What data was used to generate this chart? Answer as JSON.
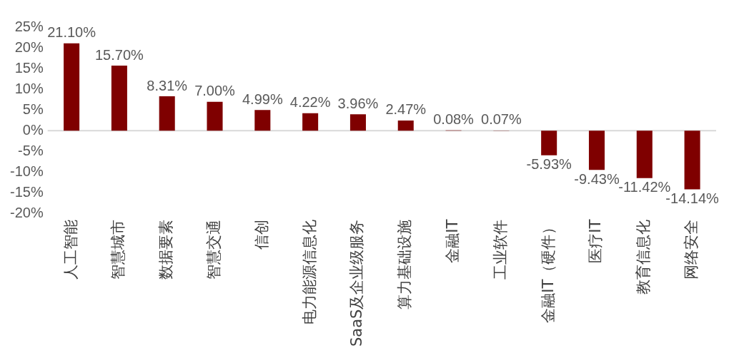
{
  "chart_data": {
    "type": "bar",
    "categories": [
      "人工智能",
      "智慧城市",
      "数据要素",
      "智慧交通",
      "信创",
      "电力能源信息化",
      "SaaS及企业级服务",
      "算力基础设施",
      "金融IT",
      "工业软件",
      "金融IT（硬件）",
      "医疗IT",
      "教育信息化",
      "网络安全"
    ],
    "values": [
      21.1,
      15.7,
      8.31,
      7.0,
      4.99,
      4.22,
      3.96,
      2.47,
      0.08,
      0.07,
      -5.93,
      -9.43,
      -11.42,
      -14.14
    ],
    "value_labels": [
      "21.10%",
      "15.70%",
      "8.31%",
      "7.00%",
      "4.99%",
      "4.22%",
      "3.96%",
      "2.47%",
      "0.08%",
      "0.07%",
      "-5.93%",
      "-9.43%",
      "-11.42%",
      "-14.14%"
    ],
    "color": "#7f0000",
    "ylim": [
      -20,
      25
    ],
    "yticks": [
      {
        "value": -20,
        "label": "-20%"
      },
      {
        "value": -15,
        "label": "-15%"
      },
      {
        "value": -10,
        "label": "-10%"
      },
      {
        "value": -5,
        "label": "-5%"
      },
      {
        "value": 0,
        "label": "0%"
      },
      {
        "value": 5,
        "label": "5%"
      },
      {
        "value": 10,
        "label": "10%"
      },
      {
        "value": 15,
        "label": "15%"
      },
      {
        "value": 20,
        "label": "20%"
      },
      {
        "value": 25,
        "label": "25%"
      }
    ],
    "ref_lines": [
      {
        "axis": "y",
        "value": 0,
        "color": "#d9d9d9"
      }
    ],
    "grid": false,
    "legend": false
  }
}
